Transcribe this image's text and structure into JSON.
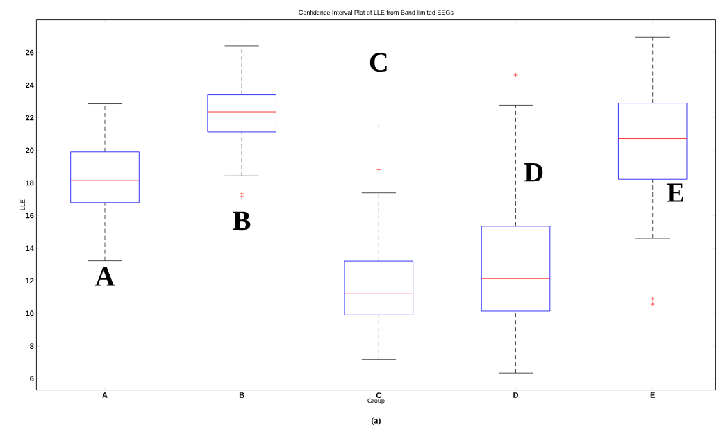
{
  "chart_data": {
    "type": "box",
    "title": "Confidence Interval Plot of LLE from Band-limited EEGs",
    "xlabel": "Group",
    "ylabel": "LLE",
    "categories": [
      "A",
      "B",
      "C",
      "D",
      "E"
    ],
    "series": [
      {
        "color": "#0000ff",
        "boxes": [
          {
            "low": 13.22,
            "q1": 16.79,
            "median": 18.14,
            "q3": 19.9,
            "high": 22.85
          },
          {
            "low": 18.43,
            "q1": 21.13,
            "median": 22.36,
            "q3": 23.4,
            "high": 26.41,
            "outliers": [
              17.34,
              17.17
            ]
          },
          {
            "low": 7.17,
            "q1": 9.91,
            "median": 11.19,
            "q3": 13.2,
            "high": 17.39,
            "outliers": [
              21.49,
              18.8
            ]
          },
          {
            "low": 6.34,
            "q1": 10.14,
            "median": 12.13,
            "q3": 15.34,
            "high": 22.77,
            "outliers": [
              24.62
            ]
          },
          {
            "low": 14.61,
            "q1": 18.22,
            "median": 20.72,
            "q3": 22.89,
            "high": 26.95,
            "outliers": [
              10.9,
              10.56
            ]
          }
        ]
      }
    ],
    "ylim": [
      5.3,
      28
    ],
    "yticks": [
      6,
      8,
      10,
      12,
      14,
      16,
      18,
      20,
      22,
      24,
      26
    ],
    "annotations": [
      "A",
      "B",
      "C",
      "D",
      "E",
      "(a)"
    ]
  }
}
